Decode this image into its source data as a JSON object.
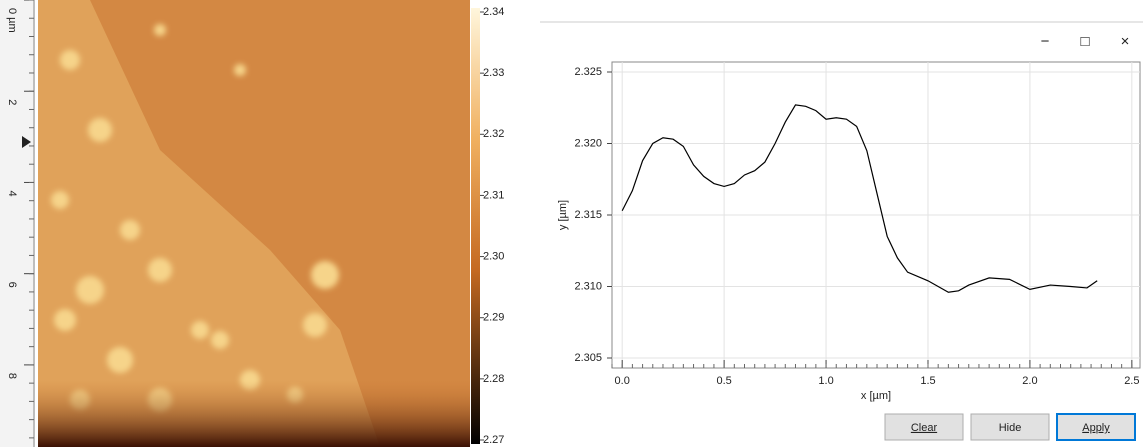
{
  "ruler": {
    "lim": [
      0,
      9.8
    ],
    "ticks": [
      {
        "value": 0,
        "label": "0 µm"
      },
      2,
      4,
      6,
      8
    ]
  },
  "colorbar": {
    "lim": [
      2.27,
      2.34
    ],
    "ticks": [
      2.34,
      2.33,
      2.32,
      2.31,
      {
        "value": 2.3,
        "label": "2.30"
      },
      2.29,
      2.28,
      2.27
    ]
  },
  "window": {
    "controls": [
      "−",
      "□",
      "×"
    ]
  },
  "buttons": [
    "Clear",
    "Hide",
    "Apply"
  ],
  "chart_data": {
    "type": "line",
    "xlabel": "x [µm]",
    "ylabel": "y [µm]",
    "x": [
      0,
      0.05,
      0.1,
      0.15,
      0.2,
      0.25,
      0.3,
      0.35,
      0.4,
      0.45,
      0.5,
      0.55,
      0.6,
      0.65,
      0.7,
      0.75,
      0.8,
      0.85,
      0.9,
      0.95,
      1.0,
      1.05,
      1.1,
      1.15,
      1.2,
      1.25,
      1.3,
      1.35,
      1.4,
      1.5,
      1.6,
      1.65,
      1.7,
      1.8,
      1.9,
      2.0,
      2.1,
      2.2,
      2.28,
      2.33
    ],
    "series": [
      {
        "color": "#000000",
        "values": [
          2.3153,
          2.3167,
          2.3188,
          2.32,
          2.3204,
          2.3203,
          2.3198,
          2.3185,
          2.3177,
          2.3172,
          2.317,
          2.3172,
          2.3178,
          2.3181,
          2.3187,
          2.32,
          2.3215,
          2.3227,
          2.3226,
          2.3223,
          2.3217,
          2.3218,
          2.3217,
          2.3212,
          2.3195,
          2.3165,
          2.3135,
          2.312,
          2.311,
          2.3104,
          2.3096,
          2.3097,
          2.3101,
          2.3106,
          2.3105,
          2.3098,
          2.3101,
          2.31,
          2.3099,
          2.3104
        ]
      }
    ],
    "xlim": [
      -0.05,
      2.54
    ],
    "ylim": [
      2.3043,
      2.3257
    ],
    "xticks": [
      {
        "value": 0,
        "label": "0.0"
      },
      0.5,
      {
        "value": 1,
        "label": "1.0"
      },
      1.5,
      {
        "value": 2,
        "label": "2.0"
      },
      2.5
    ],
    "yticks": [
      2.305,
      {
        "value": 2.31,
        "label": "2.310"
      },
      2.315,
      {
        "value": 2.32,
        "label": "2.320"
      },
      2.325
    ],
    "grid": true
  }
}
